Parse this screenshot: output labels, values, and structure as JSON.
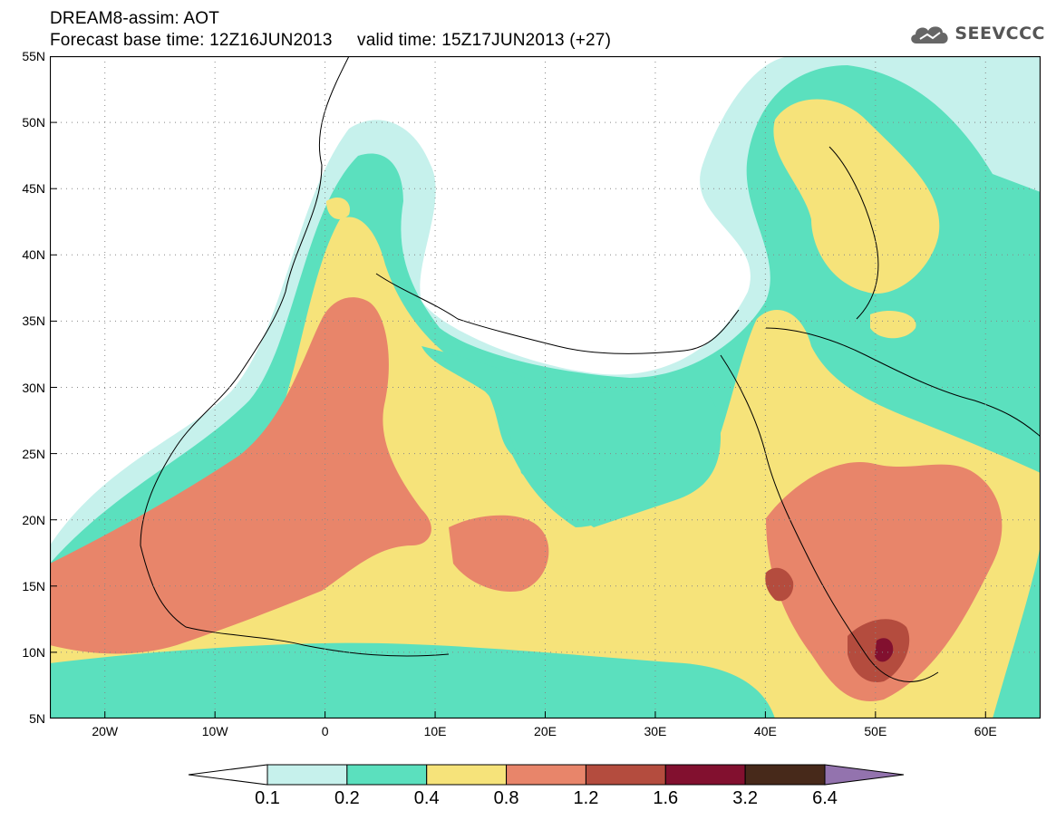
{
  "header": {
    "model": "DREAM8-assim: AOT",
    "base_time_label": "Forecast base time:",
    "base_time": "12Z16JUN2013",
    "valid_time_label": "valid time:",
    "valid_time": "15Z17JUN2013",
    "lead": "(+27)"
  },
  "logo": {
    "text": "SEEVCCC",
    "icon": "cloud-icon"
  },
  "map": {
    "lon_range": [
      -25,
      65
    ],
    "lat_range": [
      5,
      55
    ],
    "lon_ticks": [
      {
        "value": -20,
        "label": "20W"
      },
      {
        "value": -10,
        "label": "10W"
      },
      {
        "value": 0,
        "label": "0"
      },
      {
        "value": 10,
        "label": "10E"
      },
      {
        "value": 20,
        "label": "20E"
      },
      {
        "value": 30,
        "label": "30E"
      },
      {
        "value": 40,
        "label": "40E"
      },
      {
        "value": 50,
        "label": "50E"
      },
      {
        "value": 60,
        "label": "60E"
      }
    ],
    "lat_ticks": [
      {
        "value": 5,
        "label": "5N"
      },
      {
        "value": 10,
        "label": "10N"
      },
      {
        "value": 15,
        "label": "15N"
      },
      {
        "value": 20,
        "label": "20N"
      },
      {
        "value": 25,
        "label": "25N"
      },
      {
        "value": 30,
        "label": "30N"
      },
      {
        "value": 35,
        "label": "35N"
      },
      {
        "value": 40,
        "label": "40N"
      },
      {
        "value": 45,
        "label": "45N"
      },
      {
        "value": 50,
        "label": "50N"
      },
      {
        "value": 55,
        "label": "55N"
      }
    ],
    "grid": true
  },
  "legend": {
    "colors": [
      "#ffffff",
      "#c6f1ec",
      "#5be0be",
      "#f6e37a",
      "#e8856a",
      "#b44c3e",
      "#82102f",
      "#47291a",
      "#9373ae"
    ],
    "labels": [
      "0.1",
      "0.2",
      "0.4",
      "0.8",
      "1.2",
      "1.6",
      "3.2",
      "6.4"
    ]
  }
}
